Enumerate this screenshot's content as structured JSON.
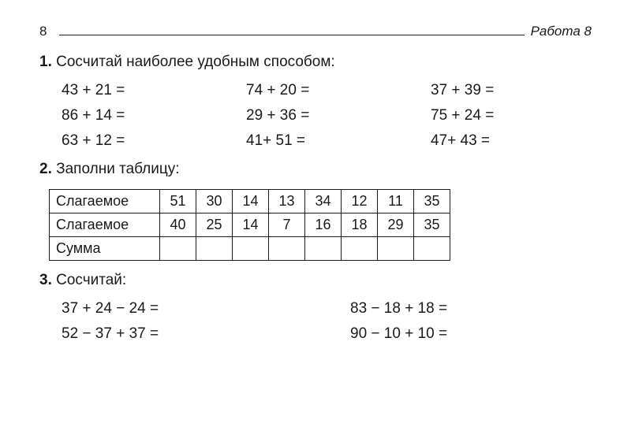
{
  "header": {
    "page_number": "8",
    "work_label": "Работа 8"
  },
  "section1": {
    "number": "1.",
    "title": "Сосчитай наиболее удобным способом:",
    "equations": [
      "43 + 21 =",
      "74 + 20 =",
      "37 + 39 =",
      "86 + 14 =",
      "29 + 36 =",
      "75 + 24 =",
      "63 + 12 =",
      "41+ 51 =",
      "47+ 43 ="
    ]
  },
  "section2": {
    "number": "2.",
    "title": "Заполни таблицу:",
    "table": {
      "rows": [
        {
          "label": "Слагаемое",
          "cells": [
            "51",
            "30",
            "14",
            "13",
            "34",
            "12",
            "11",
            "35"
          ]
        },
        {
          "label": "Слагаемое",
          "cells": [
            "40",
            "25",
            "14",
            "7",
            "16",
            "18",
            "29",
            "35"
          ]
        },
        {
          "label": "Сумма",
          "cells": [
            "",
            "",
            "",
            "",
            "",
            "",
            "",
            ""
          ]
        }
      ]
    }
  },
  "section3": {
    "number": "3.",
    "title": "Сосчитай:",
    "equations": [
      "37 + 24 − 24 =",
      "83 − 18 + 18 =",
      "52 − 37 + 37 =",
      "90 − 10 + 10 ="
    ]
  },
  "style": {
    "text_color": "#1a1a1a",
    "background": "#ffffff",
    "border_color": "#1a1a1a",
    "body_fontsize": 19,
    "header_fontsize": 17,
    "table_fontsize": 18,
    "font_family": "Arial"
  }
}
